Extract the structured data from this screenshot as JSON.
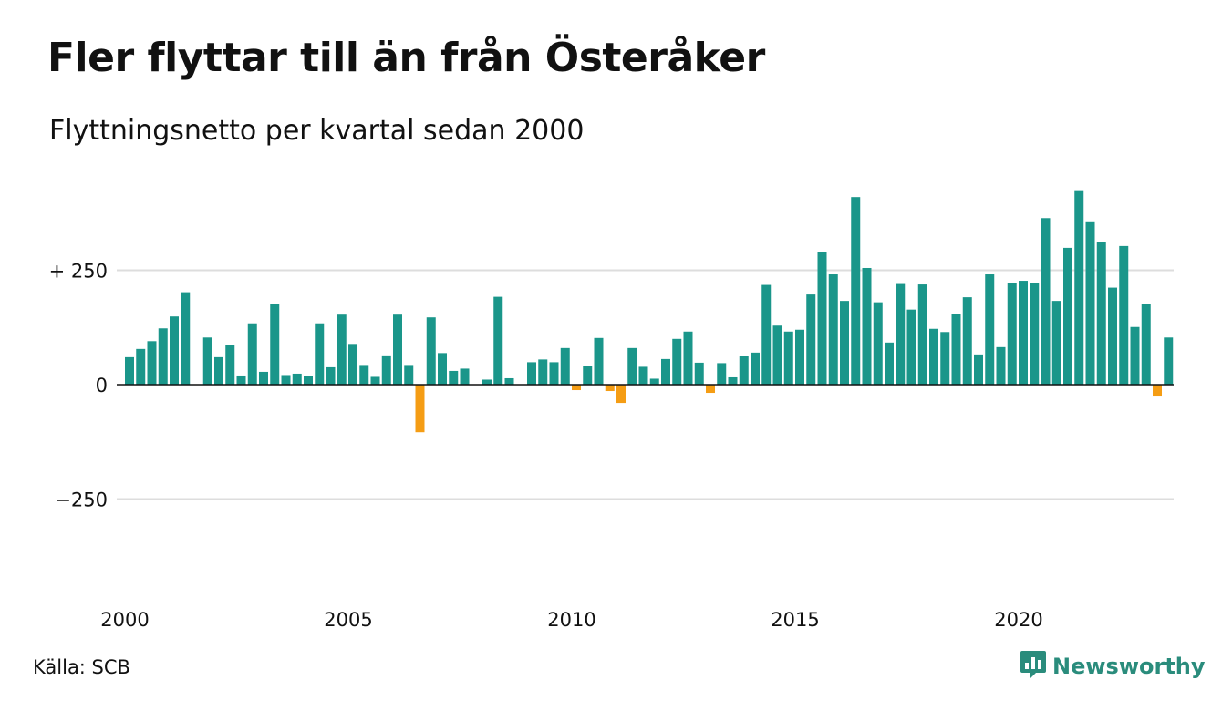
{
  "header": {
    "title": "Fler flyttar till än från Österåker",
    "subtitle": "Flyttningsnetto per kvartal sedan 2000"
  },
  "footer": {
    "source": "Källa: SCB",
    "brand": "Newsworthy"
  },
  "colors": {
    "positive": "#1a968a",
    "negative": "#f59d14",
    "grid": "#dddddd",
    "baseline": "#111111",
    "brand": "#2a8c7c"
  },
  "chart_data": {
    "type": "bar",
    "title": "Fler flyttar till än från Österåker",
    "subtitle": "Flyttningsnetto per kvartal sedan 2000",
    "xlabel": "",
    "ylabel": "",
    "ylim": [
      -500,
      500
    ],
    "yticks": [
      {
        "value": 250,
        "label": "+ 250"
      },
      {
        "value": 0,
        "label": "0"
      },
      {
        "value": -250,
        "label": "−250"
      }
    ],
    "xticks": [
      {
        "index": 0,
        "label": "2000"
      },
      {
        "index": 20,
        "label": "2005"
      },
      {
        "index": 40,
        "label": "2010"
      },
      {
        "index": 60,
        "label": "2015"
      },
      {
        "index": 80,
        "label": "2020"
      }
    ],
    "grid": true,
    "legend": "none",
    "values": [
      60,
      78,
      95,
      123,
      149,
      202,
      0,
      103,
      60,
      86,
      20,
      134,
      28,
      176,
      21,
      24,
      19,
      134,
      38,
      153,
      89,
      43,
      17,
      64,
      153,
      43,
      -104,
      147,
      69,
      30,
      35,
      0,
      11,
      192,
      14,
      0,
      49,
      55,
      49,
      80,
      -12,
      40,
      102,
      -14,
      -40,
      80,
      39,
      13,
      56,
      100,
      116,
      48,
      -18,
      47,
      16,
      63,
      70,
      218,
      129,
      116,
      120,
      197,
      289,
      241,
      183,
      410,
      255,
      180,
      92,
      220,
      164,
      219,
      122,
      115,
      155,
      191,
      66,
      241,
      82,
      222,
      227,
      223,
      364,
      183,
      299,
      425,
      357,
      311,
      212,
      303,
      126,
      177,
      -24,
      103
    ]
  }
}
